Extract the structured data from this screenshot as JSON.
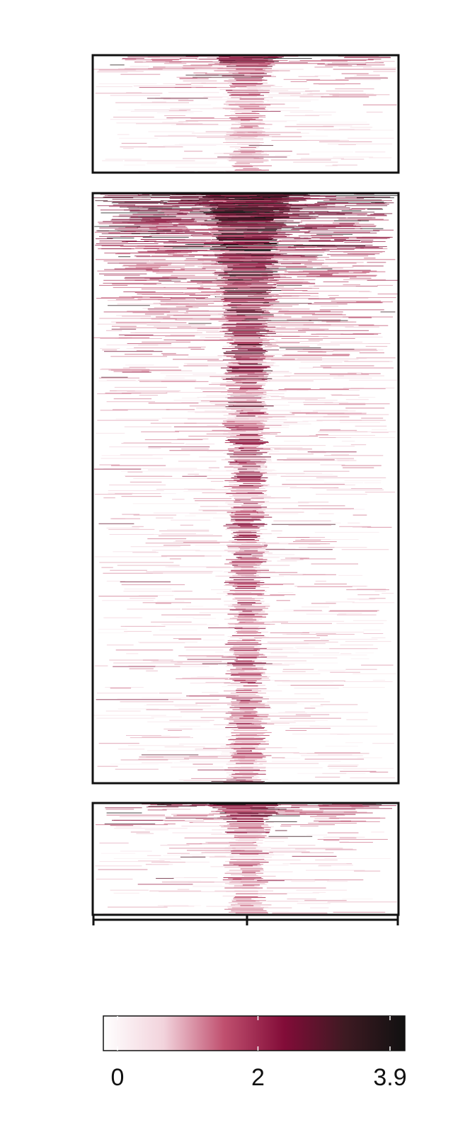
{
  "chart_data": {
    "type": "heatmap",
    "title": "",
    "xlabel": "",
    "ylabel": "",
    "panels": [
      {
        "name": "",
        "rows": 160,
        "peak_strength": 0.55,
        "top_enrichment": 0.5
      },
      {
        "name": "",
        "rows": 820,
        "peak_strength": 0.8,
        "top_enrichment": 1.0
      },
      {
        "name": "",
        "rows": 150,
        "peak_strength": 0.6,
        "top_enrichment": 0.6
      }
    ],
    "x_ticks": {
      "count": 3,
      "labels": [
        "",
        "",
        ""
      ],
      "center_index": 1
    },
    "colorbar": {
      "min": 0,
      "max": 3.9,
      "ticks": [
        0,
        2,
        3.9
      ],
      "tick_labels": [
        "0",
        "2",
        "3.9"
      ],
      "colors": [
        "#ffffff",
        "#f2d3dc",
        "#c0506f",
        "#820c38",
        "#3e1a22",
        "#111111"
      ]
    },
    "grid": false,
    "legend": "bottom"
  }
}
